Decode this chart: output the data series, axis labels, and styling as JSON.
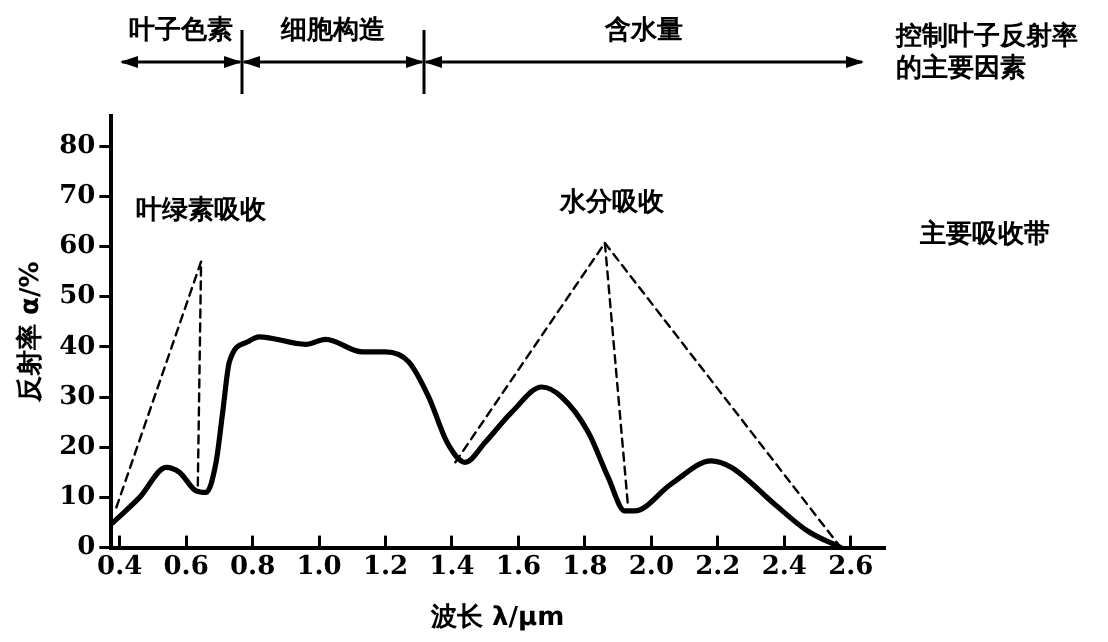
{
  "chart_data": {
    "type": "line",
    "xlabel": "波长 λ/μm",
    "ylabel": "反射率 α/%",
    "xlim": [
      0.375,
      2.7
    ],
    "xticks": [
      0.4,
      0.6,
      0.8,
      {
        "value": 1,
        "label": "1.0"
      },
      1.2,
      1.4,
      1.6,
      1.8,
      {
        "value": 2,
        "label": "2.0"
      },
      2.2,
      2.4,
      2.6
    ],
    "ylim": [
      0,
      86
    ],
    "yticks": [
      0,
      10,
      20,
      30,
      40,
      50,
      60,
      70,
      80
    ],
    "grid": false,
    "legend": false,
    "marker": "none",
    "series": [
      {
        "color": "#000000",
        "line_style": "solid",
        "x": [
          0.38,
          0.46,
          0.54,
          0.58,
          0.63,
          0.66,
          0.69,
          0.71,
          0.73,
          0.785,
          0.82,
          0.96,
          1.02,
          1.13,
          1.2,
          1.27,
          1.33,
          1.385,
          1.44,
          1.5,
          1.58,
          1.67,
          1.73,
          1.81,
          1.87,
          1.92,
          1.95,
          2.06,
          2.18,
          2.24,
          2.37,
          2.47,
          2.57
        ],
        "values": [
          5,
          10,
          16,
          15,
          11.3,
          11,
          17,
          27,
          37,
          41,
          42,
          40.5,
          41.5,
          39,
          39,
          37,
          30,
          21,
          17,
          21,
          27,
          32,
          30,
          23,
          14,
          7.3,
          7.3,
          12.7,
          17.3,
          16,
          8.7,
          3.3,
          0
        ]
      },
      {
        "color": "#000000",
        "line_style": "dashed",
        "x": [
          0.39,
          0.645,
          0.635
        ],
        "values": [
          8,
          57,
          12
        ]
      },
      {
        "color": "#000000",
        "line_style": "dashed",
        "x": [
          1.41,
          1.86,
          1.93
        ],
        "values": [
          17,
          60.7,
          8
        ]
      },
      {
        "color": "#000000",
        "line_style": "dashed",
        "x": [
          1.86,
          2.57
        ],
        "values": [
          60.7,
          0
        ]
      }
    ],
    "annotations": [
      "叶子色素",
      "细胞构造",
      "含水量",
      "控制叶子反射率的主要因素",
      "叶绿素吸收",
      "水分吸收",
      "主要吸收带"
    ]
  }
}
